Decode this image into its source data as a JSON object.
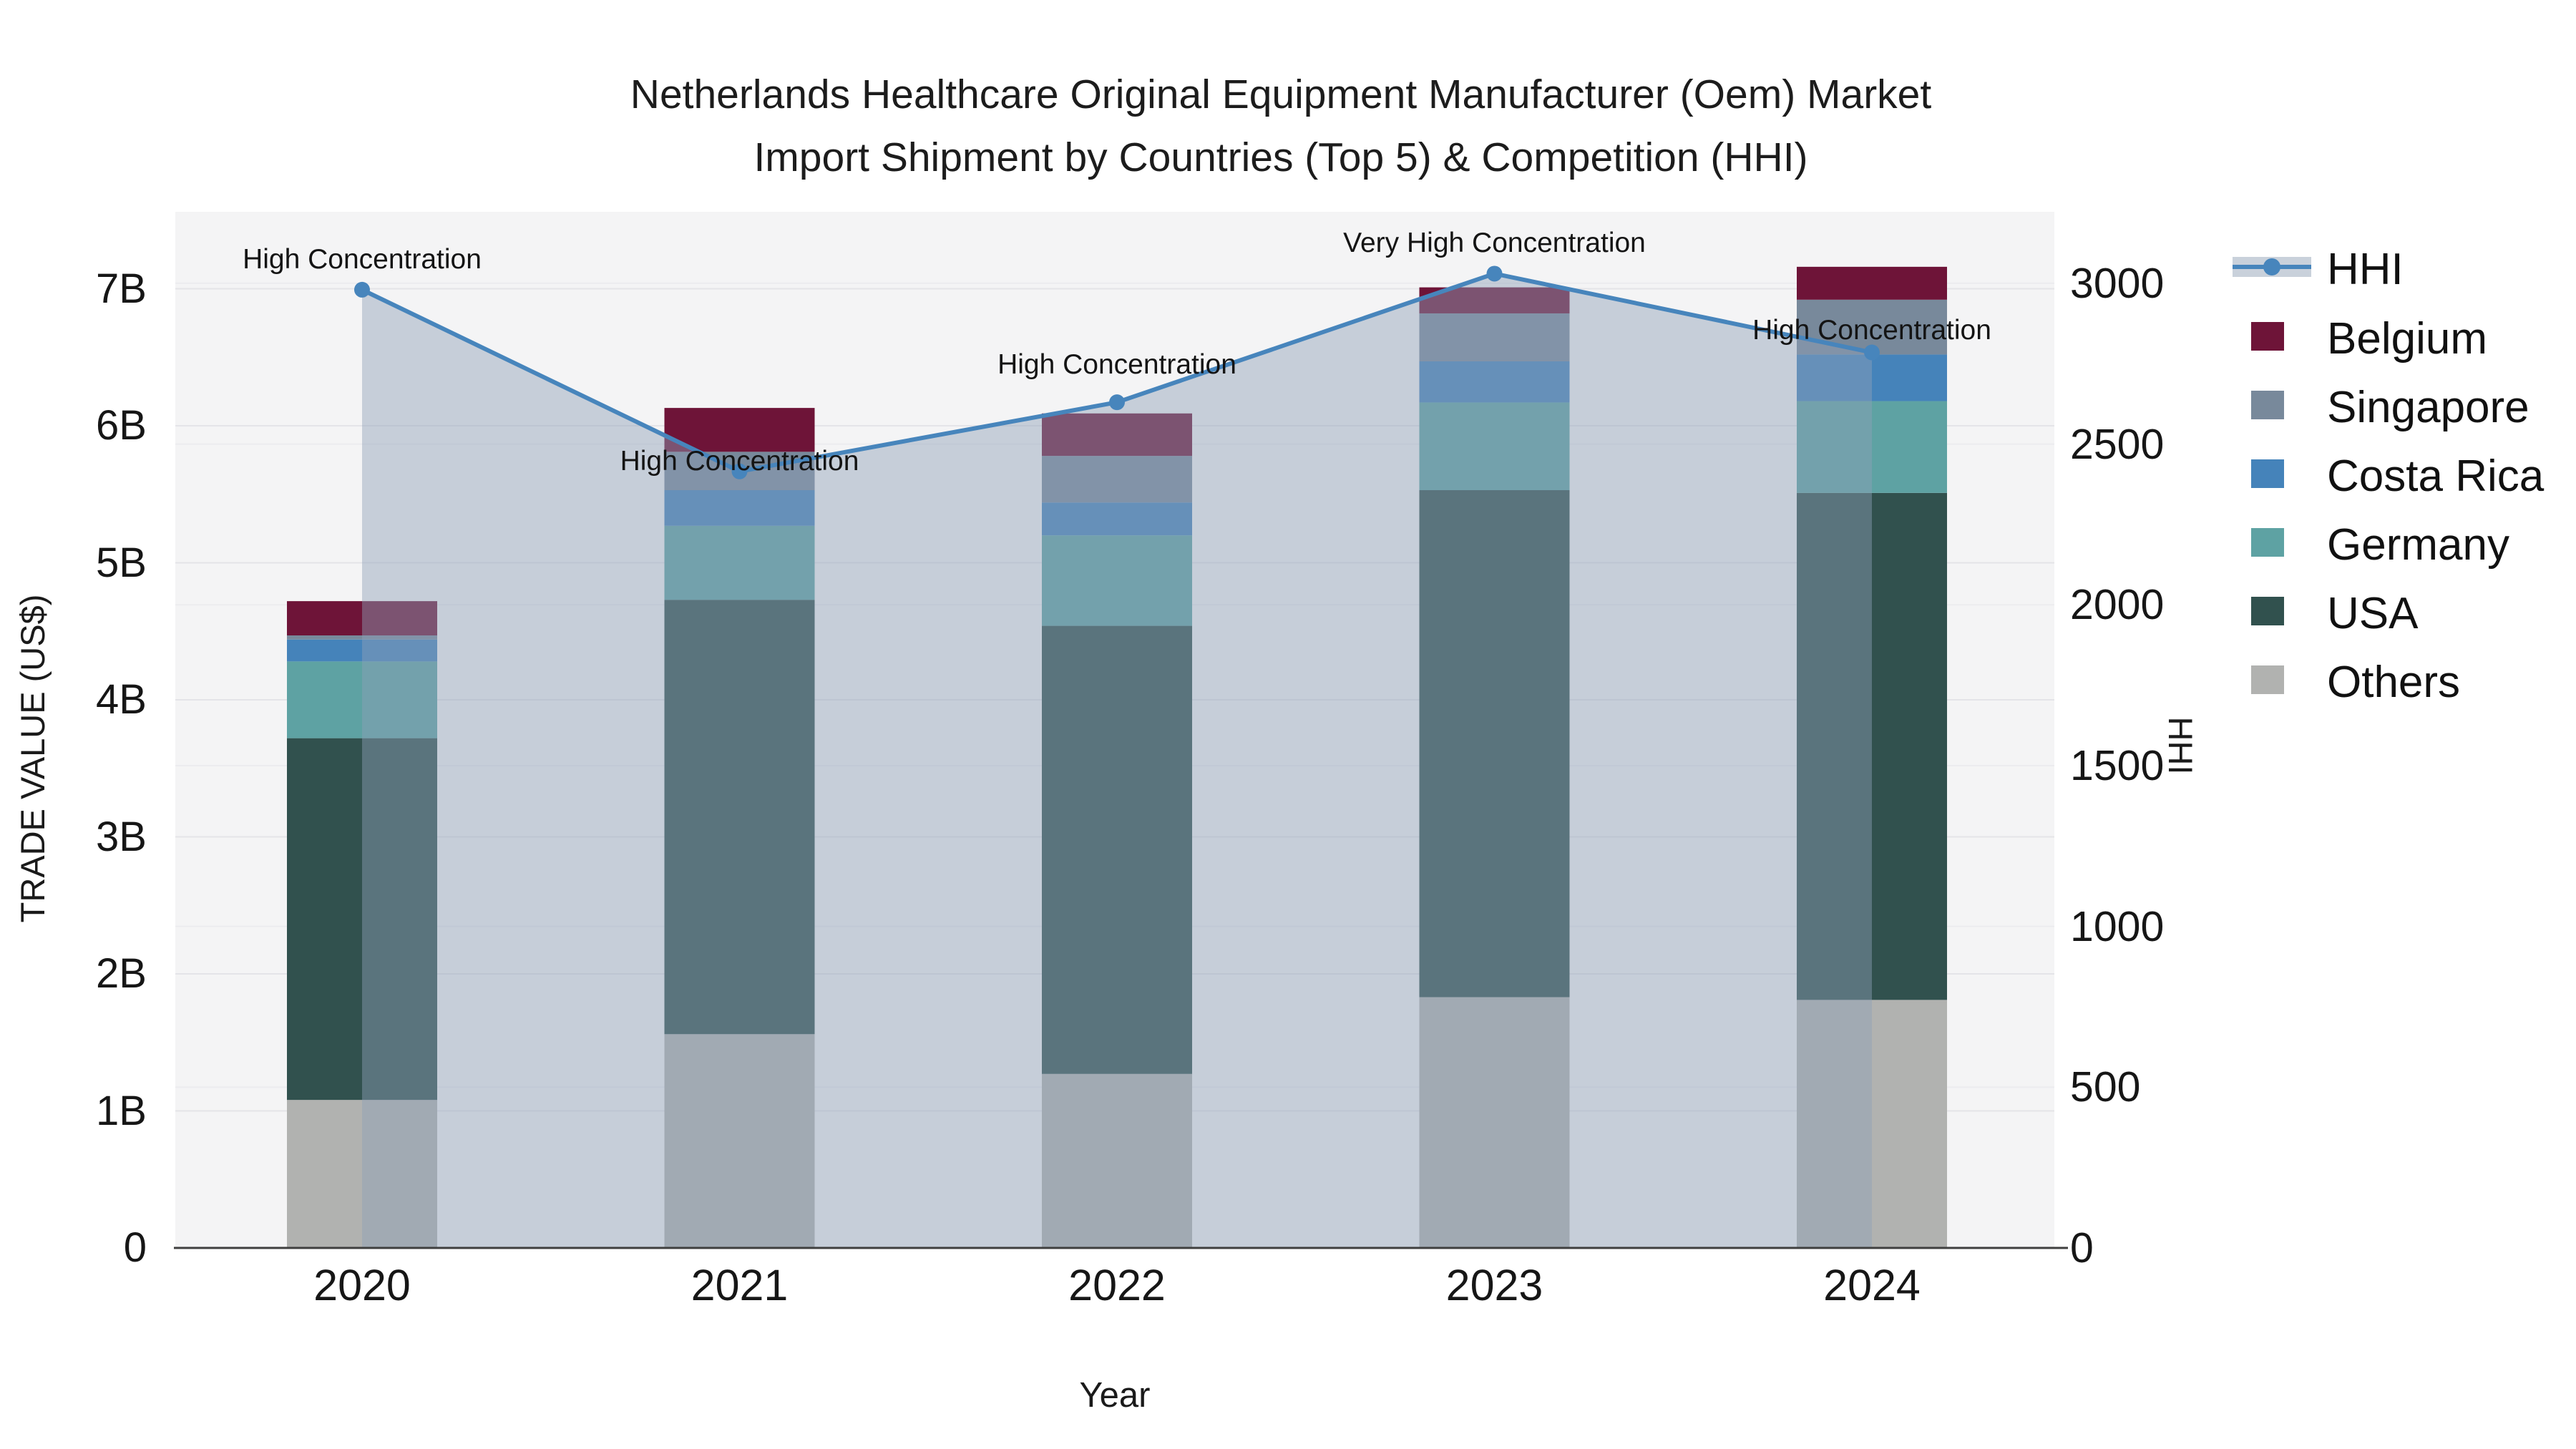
{
  "title": {
    "line1": "Netherlands Healthcare Original Equipment Manufacturer (Oem) Market",
    "line2": "Import Shipment by Countries (Top 5) & Competition (HHI)"
  },
  "axes": {
    "x_title": "Year",
    "y_left_title": "TRADE VALUE (US$)",
    "y_right_title": "HHI",
    "y_left_ticks": [
      "0",
      "1B",
      "2B",
      "3B",
      "4B",
      "5B",
      "6B",
      "7B"
    ],
    "y_right_ticks": [
      "0",
      "500",
      "1000",
      "1500",
      "2000",
      "2500",
      "3000"
    ]
  },
  "legend": {
    "items": [
      {
        "label": "HHI",
        "type": "line",
        "color": "#4785bc"
      },
      {
        "label": "Belgium",
        "type": "box",
        "color": "#6e1438"
      },
      {
        "label": "Singapore",
        "type": "box",
        "color": "#78899b"
      },
      {
        "label": "Costa Rica",
        "type": "box",
        "color": "#4583ba"
      },
      {
        "label": "Germany",
        "type": "box",
        "color": "#5ea2a3"
      },
      {
        "label": "USA",
        "type": "box",
        "color": "#31514e"
      },
      {
        "label": "Others",
        "type": "box",
        "color": "#b1b2b0"
      }
    ]
  },
  "chart_data": {
    "type": "bar",
    "subtype": "stacked-bars-with-line-overlay",
    "categories": [
      "2020",
      "2021",
      "2022",
      "2023",
      "2024"
    ],
    "bar_unit": "billion US$ (trade value)",
    "series": [
      {
        "name": "Belgium",
        "color": "#6e1438",
        "values": [
          0.25,
          0.32,
          0.31,
          0.19,
          0.24
        ]
      },
      {
        "name": "Singapore",
        "color": "#78899b",
        "values": [
          0.03,
          0.28,
          0.34,
          0.35,
          0.4
        ]
      },
      {
        "name": "Costa Rica",
        "color": "#4583ba",
        "values": [
          0.16,
          0.26,
          0.24,
          0.3,
          0.34
        ]
      },
      {
        "name": "Germany",
        "color": "#5ea2a3",
        "values": [
          0.56,
          0.54,
          0.66,
          0.64,
          0.67
        ]
      },
      {
        "name": "USA",
        "color": "#31514e",
        "values": [
          2.64,
          3.17,
          3.27,
          3.7,
          3.7
        ]
      },
      {
        "name": "Others",
        "color": "#b1b2b0",
        "values": [
          1.08,
          1.56,
          1.27,
          1.83,
          1.81
        ]
      }
    ],
    "stack_order_bottom_to_top": [
      "Others",
      "USA",
      "Germany",
      "Costa Rica",
      "Singapore",
      "Belgium"
    ],
    "bar_totals": [
      4.72,
      6.13,
      6.09,
      7.01,
      7.16
    ],
    "line": {
      "name": "HHI",
      "axis": "right",
      "color": "#4785bc",
      "area_fill": "rgba(143,160,184,0.45)",
      "values": [
        2980,
        2415,
        2630,
        3030,
        2785
      ]
    },
    "annotations": [
      {
        "x": "2020",
        "text": "High Concentration",
        "dy": -42
      },
      {
        "x": "2021",
        "text": "High Concentration",
        "dy": -14
      },
      {
        "x": "2022",
        "text": "High Concentration",
        "dy": -52
      },
      {
        "x": "2023",
        "text": "Very High Concentration",
        "dy": -42
      },
      {
        "x": "2024",
        "text": "High Concentration",
        "dy": -31
      }
    ],
    "title": "Netherlands Healthcare Original Equipment Manufacturer (Oem) Market Import Shipment by Countries (Top 5) & Competition (HHI)",
    "xlabel": "Year",
    "ylabel_left": "TRADE VALUE (US$)",
    "ylabel_right": "HHI",
    "ylim_left": [
      0,
      7.56
    ],
    "ylim_right": [
      0,
      3225
    ],
    "grid": true,
    "legend_position": "right"
  },
  "colors": {
    "plot_bg": "#f4f4f5",
    "page_bg": "#ffffff",
    "grid_left": "#e4e4e8",
    "grid_right": "#ececef",
    "axis_line": "#3f3f3f",
    "text": "#111111"
  }
}
